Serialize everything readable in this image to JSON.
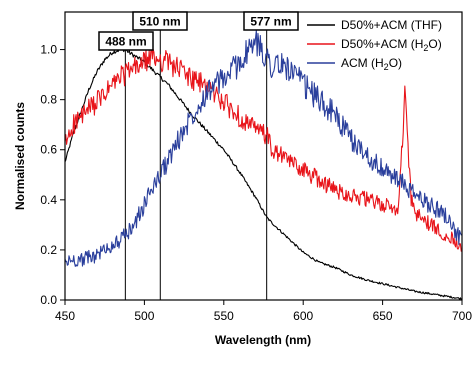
{
  "chart_data": {
    "type": "line",
    "xlabel": "Wavelength (nm)",
    "ylabel": "Normalised counts",
    "xlim": [
      450,
      700
    ],
    "ylim": [
      0.0,
      1.15
    ],
    "x_ticks": [
      "450",
      "500",
      "550",
      "600",
      "650",
      "700"
    ],
    "y_ticks": [
      "0.0",
      "0.2",
      "0.4",
      "0.6",
      "0.8",
      "1.0"
    ],
    "legend_position": "top-right",
    "grid": false,
    "series": [
      {
        "name": "D50%+ACM (THF)",
        "name_main": "D50%+ACM (THF)",
        "name_sub": "",
        "name_tail": "",
        "color": "#000000",
        "noise": 0.006,
        "x": [
          450,
          455,
          460,
          465,
          470,
          475,
          480,
          485,
          488,
          490,
          495,
          500,
          505,
          510,
          515,
          520,
          525,
          530,
          540,
          550,
          560,
          570,
          577,
          580,
          590,
          600,
          610,
          620,
          630,
          640,
          650,
          660,
          670,
          680,
          690,
          700
        ],
        "y": [
          0.55,
          0.66,
          0.75,
          0.84,
          0.91,
          0.96,
          0.99,
          1.0,
          1.0,
          0.99,
          0.97,
          0.95,
          0.92,
          0.89,
          0.86,
          0.82,
          0.78,
          0.74,
          0.67,
          0.6,
          0.51,
          0.41,
          0.33,
          0.31,
          0.25,
          0.19,
          0.15,
          0.13,
          0.1,
          0.08,
          0.065,
          0.05,
          0.035,
          0.025,
          0.015,
          0.005
        ]
      },
      {
        "name": "D50%+ACM (H2O)",
        "name_main": "D50%+ACM (H",
        "name_sub": "2",
        "name_tail": "O)",
        "color": "#e8141a",
        "noise": 0.035,
        "x": [
          450,
          455,
          460,
          465,
          470,
          475,
          480,
          485,
          490,
          495,
          500,
          505,
          510,
          515,
          520,
          525,
          530,
          540,
          550,
          560,
          570,
          577,
          580,
          590,
          600,
          610,
          620,
          630,
          640,
          650,
          660,
          664,
          668,
          670,
          680,
          690,
          700
        ],
        "y": [
          0.62,
          0.7,
          0.73,
          0.76,
          0.79,
          0.82,
          0.86,
          0.89,
          0.91,
          0.93,
          0.95,
          0.97,
          0.96,
          0.95,
          0.93,
          0.91,
          0.88,
          0.85,
          0.79,
          0.73,
          0.68,
          0.66,
          0.6,
          0.56,
          0.52,
          0.48,
          0.44,
          0.42,
          0.4,
          0.38,
          0.36,
          0.82,
          0.4,
          0.35,
          0.3,
          0.26,
          0.22
        ]
      },
      {
        "name": "ACM (H2O)",
        "name_main": "ACM (H",
        "name_sub": "2",
        "name_tail": "O)",
        "color": "#2a3f9c",
        "noise": 0.04,
        "x": [
          450,
          455,
          460,
          465,
          470,
          475,
          480,
          485,
          490,
          495,
          500,
          505,
          510,
          515,
          520,
          525,
          530,
          535,
          540,
          545,
          550,
          560,
          565,
          570,
          575,
          580,
          590,
          600,
          610,
          620,
          630,
          640,
          650,
          660,
          670,
          680,
          690,
          700
        ],
        "y": [
          0.15,
          0.16,
          0.16,
          0.17,
          0.18,
          0.2,
          0.22,
          0.24,
          0.27,
          0.32,
          0.38,
          0.45,
          0.5,
          0.56,
          0.62,
          0.68,
          0.74,
          0.79,
          0.84,
          0.86,
          0.88,
          0.95,
          0.99,
          1.03,
          0.99,
          0.94,
          0.93,
          0.86,
          0.8,
          0.74,
          0.64,
          0.58,
          0.52,
          0.48,
          0.42,
          0.38,
          0.34,
          0.23
        ]
      }
    ],
    "annotations": [
      {
        "label": "488 nm",
        "x": 488
      },
      {
        "label": "510 nm",
        "x": 510
      },
      {
        "label": "577 nm",
        "x": 577
      }
    ]
  }
}
